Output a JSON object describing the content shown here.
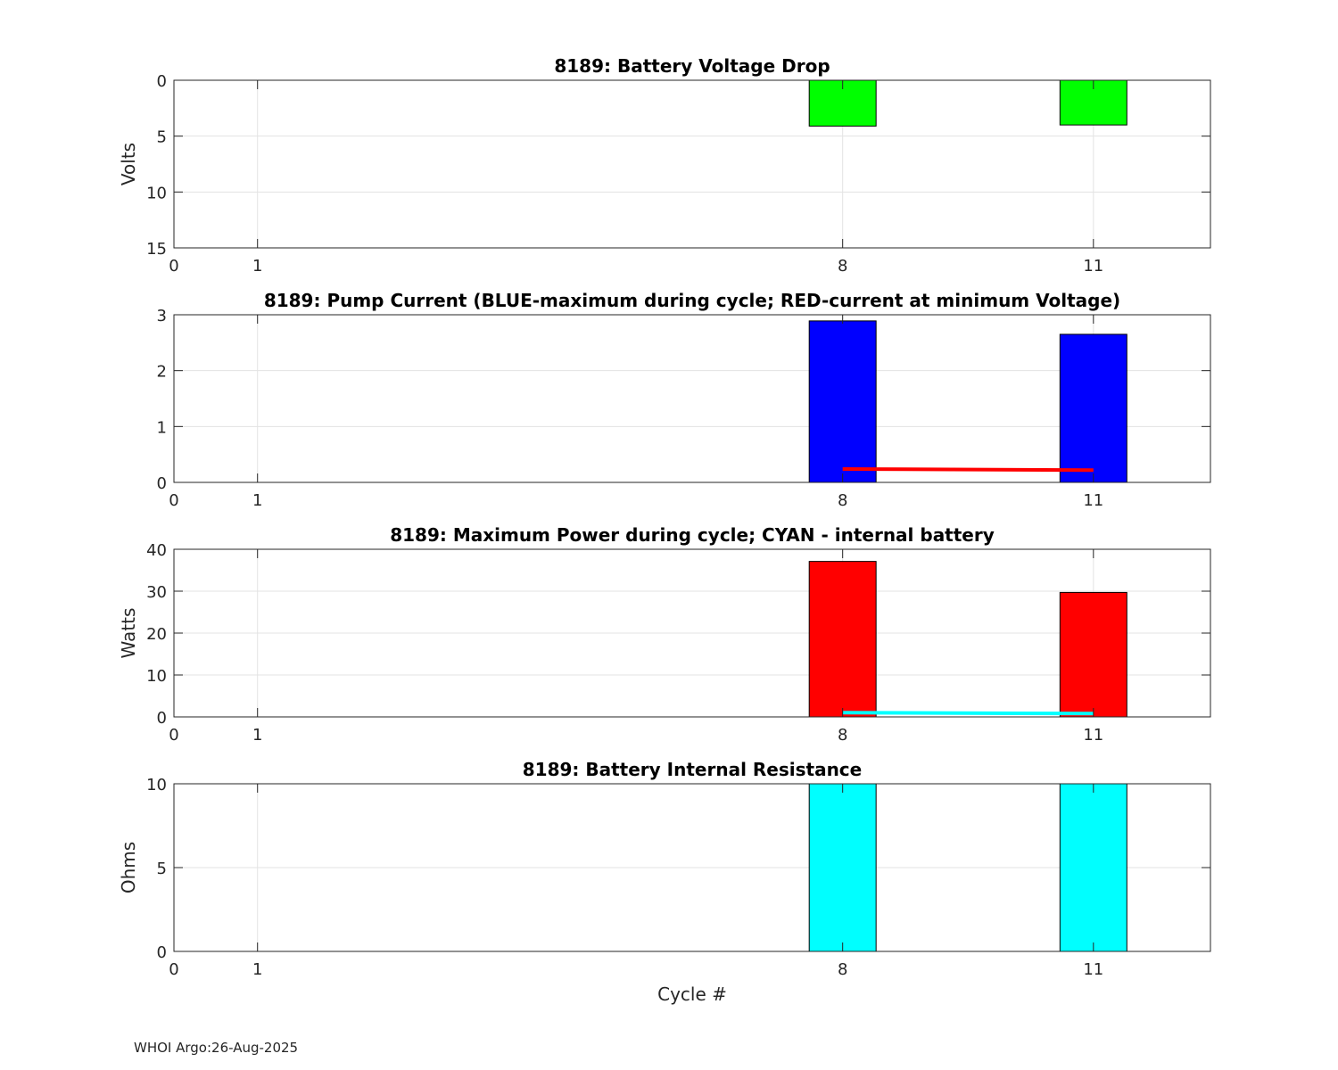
{
  "footer": {
    "text": "WHOI Argo:26-Aug-2025"
  },
  "chart_data": [
    {
      "type": "bar",
      "title": "8189: Battery Voltage Drop",
      "xlabel": "",
      "ylabel": "Volts",
      "xlim": [
        0,
        12.4
      ],
      "ylim": [
        0,
        15
      ],
      "y_reversed": true,
      "xticks": [
        0,
        1,
        8,
        11
      ],
      "yticks": [
        0,
        5,
        10,
        15
      ],
      "grid": true,
      "bar_width": 0.8,
      "bars": [
        {
          "x": 8,
          "value": 4.1,
          "color": "#00ff00"
        },
        {
          "x": 11,
          "value": 4.0,
          "color": "#00ff00"
        }
      ],
      "lines": []
    },
    {
      "type": "bar",
      "title": "8189: Pump Current (BLUE-maximum during cycle; RED-current at minimum Voltage)",
      "xlabel": "",
      "ylabel": "",
      "xlim": [
        0,
        12.4
      ],
      "ylim": [
        0,
        3
      ],
      "y_reversed": false,
      "xticks": [
        0,
        1,
        8,
        11
      ],
      "yticks": [
        0,
        1,
        2,
        3
      ],
      "grid": true,
      "bar_width": 0.8,
      "bars": [
        {
          "x": 8,
          "value": 2.89,
          "color": "#0000ff"
        },
        {
          "x": 11,
          "value": 2.65,
          "color": "#0000ff"
        }
      ],
      "lines": [
        {
          "color": "#ff0000",
          "x": [
            8,
            11
          ],
          "y": [
            0.24,
            0.22
          ]
        }
      ]
    },
    {
      "type": "bar",
      "title": "8189: Maximum Power during cycle; CYAN - internal battery",
      "xlabel": "",
      "ylabel": "Watts",
      "xlim": [
        0,
        12.4
      ],
      "ylim": [
        0,
        40
      ],
      "y_reversed": false,
      "xticks": [
        0,
        1,
        8,
        11
      ],
      "yticks": [
        0,
        10,
        20,
        30,
        40
      ],
      "grid": true,
      "bar_width": 0.8,
      "bars": [
        {
          "x": 8,
          "value": 37.1,
          "color": "#ff0000"
        },
        {
          "x": 11,
          "value": 29.7,
          "color": "#ff0000"
        }
      ],
      "lines": [
        {
          "color": "#00ffff",
          "x": [
            8,
            11
          ],
          "y": [
            1.0,
            0.8
          ]
        }
      ]
    },
    {
      "type": "bar",
      "title": "8189: Battery Internal Resistance",
      "xlabel": "Cycle #",
      "ylabel": "Ohms",
      "xlim": [
        0,
        12.4
      ],
      "ylim": [
        0,
        10
      ],
      "y_reversed": false,
      "xticks": [
        0,
        1,
        8,
        11
      ],
      "yticks": [
        0,
        5,
        10
      ],
      "grid": true,
      "bar_width": 0.8,
      "bars": [
        {
          "x": 8,
          "value": 10,
          "color": "#00ffff"
        },
        {
          "x": 11,
          "value": 10,
          "color": "#00ffff"
        }
      ],
      "lines": []
    }
  ]
}
